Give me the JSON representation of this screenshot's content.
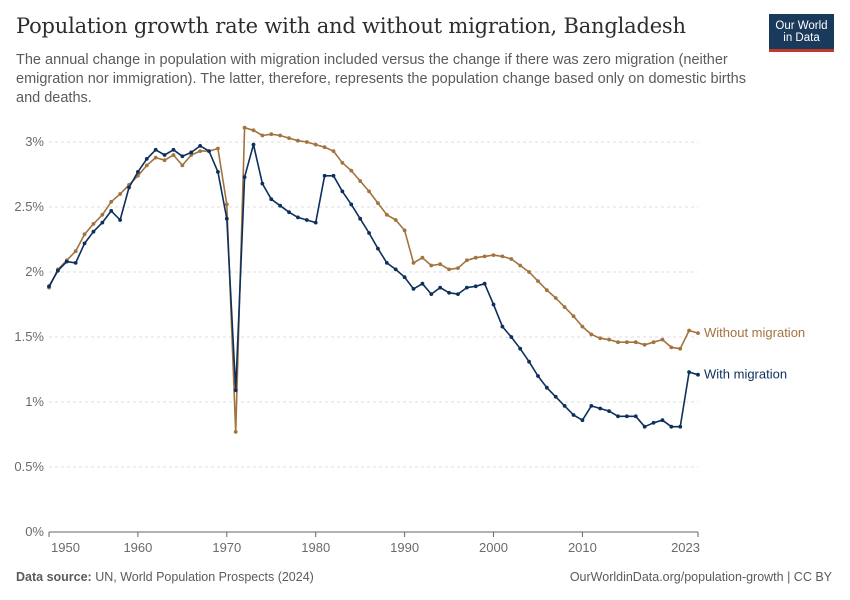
{
  "header": {
    "title": "Population growth rate with and without migration, Bangladesh",
    "subtitle": "The annual change in population with migration included versus the change if there was zero migration (neither emigration nor immigration). The latter, therefore, represents the population change based only on domestic births and deaths.",
    "logo_line1": "Our World",
    "logo_line2": "in Data"
  },
  "footer": {
    "source_label": "Data source:",
    "source_text": " UN, World Population Prospects (2024)",
    "url": "OurWorldinData.org/population-growth | CC BY"
  },
  "colors": {
    "with_migration": "#0d2f5c",
    "without_migration": "#a2733f",
    "grid": "#dddddd",
    "axis": "#666666"
  },
  "chart_data": {
    "type": "line",
    "xlim": [
      1950,
      2023
    ],
    "ylim": [
      0,
      3
    ],
    "x_ticks": [
      1950,
      1960,
      1970,
      1980,
      1990,
      2000,
      2010,
      2023
    ],
    "x_tick_labels": [
      "1950",
      "1960",
      "1970",
      "1980",
      "1990",
      "2000",
      "2010",
      "2023"
    ],
    "y_ticks": [
      0,
      0.5,
      1,
      1.5,
      2,
      2.5,
      3
    ],
    "y_tick_labels": [
      "0%",
      "0.5%",
      "1%",
      "1.5%",
      "2%",
      "2.5%",
      "3%"
    ],
    "grid": true,
    "x": [
      1950,
      1951,
      1952,
      1953,
      1954,
      1955,
      1956,
      1957,
      1958,
      1959,
      1960,
      1961,
      1962,
      1963,
      1964,
      1965,
      1966,
      1967,
      1968,
      1969,
      1970,
      1971,
      1972,
      1973,
      1974,
      1975,
      1976,
      1977,
      1978,
      1979,
      1980,
      1981,
      1982,
      1983,
      1984,
      1985,
      1986,
      1987,
      1988,
      1989,
      1990,
      1991,
      1992,
      1993,
      1994,
      1995,
      1996,
      1997,
      1998,
      1999,
      2000,
      2001,
      2002,
      2003,
      2004,
      2005,
      2006,
      2007,
      2008,
      2009,
      2010,
      2011,
      2012,
      2013,
      2014,
      2015,
      2016,
      2017,
      2018,
      2019,
      2020,
      2021,
      2022,
      2023
    ],
    "series": [
      {
        "name": "Without migration",
        "key": "without_migration",
        "values": [
          1.88,
          2.02,
          2.09,
          2.16,
          2.29,
          2.37,
          2.44,
          2.54,
          2.6,
          2.67,
          2.74,
          2.82,
          2.88,
          2.86,
          2.9,
          2.82,
          2.9,
          2.93,
          2.93,
          2.95,
          2.52,
          0.77,
          3.11,
          3.09,
          3.05,
          3.06,
          3.05,
          3.03,
          3.01,
          3.0,
          2.98,
          2.96,
          2.93,
          2.84,
          2.78,
          2.7,
          2.62,
          2.53,
          2.44,
          2.4,
          2.32,
          2.07,
          2.11,
          2.05,
          2.06,
          2.02,
          2.03,
          2.09,
          2.11,
          2.12,
          2.13,
          2.12,
          2.1,
          2.05,
          2.0,
          1.93,
          1.86,
          1.8,
          1.73,
          1.66,
          1.58,
          1.52,
          1.49,
          1.48,
          1.46,
          1.46,
          1.46,
          1.44,
          1.46,
          1.48,
          1.42,
          1.41,
          1.55,
          1.53
        ]
      },
      {
        "name": "With migration",
        "key": "with_migration",
        "values": [
          1.89,
          2.01,
          2.08,
          2.07,
          2.22,
          2.31,
          2.38,
          2.47,
          2.4,
          2.65,
          2.77,
          2.87,
          2.94,
          2.9,
          2.94,
          2.89,
          2.92,
          2.97,
          2.93,
          2.77,
          2.41,
          1.09,
          2.73,
          2.98,
          2.68,
          2.56,
          2.51,
          2.46,
          2.42,
          2.4,
          2.38,
          2.74,
          2.74,
          2.62,
          2.52,
          2.41,
          2.3,
          2.18,
          2.07,
          2.02,
          1.96,
          1.87,
          1.91,
          1.83,
          1.88,
          1.84,
          1.83,
          1.88,
          1.89,
          1.91,
          1.75,
          1.58,
          1.5,
          1.41,
          1.31,
          1.2,
          1.11,
          1.04,
          0.97,
          0.9,
          0.86,
          0.97,
          0.95,
          0.93,
          0.89,
          0.89,
          0.89,
          0.81,
          0.84,
          0.86,
          0.81,
          0.81,
          1.23,
          1.21
        ]
      }
    ]
  }
}
